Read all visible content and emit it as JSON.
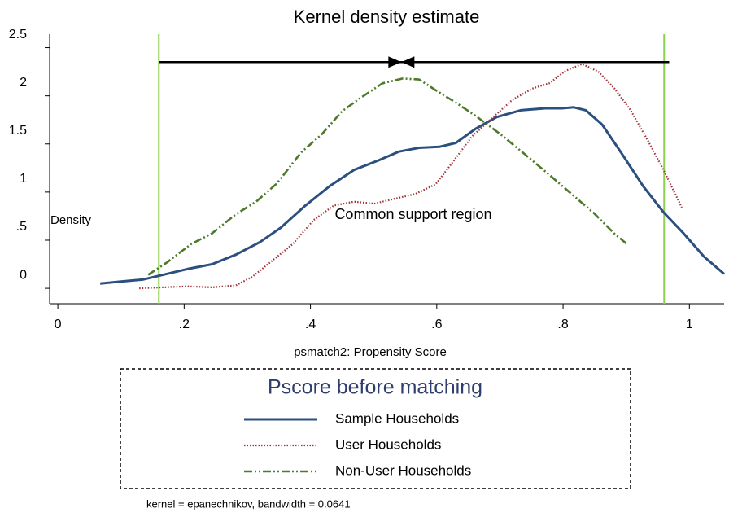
{
  "chart_data": {
    "type": "line",
    "title": "Kernel density estimate",
    "xlabel": "psmatch2: Propensity Score",
    "ylabel": "Density",
    "xlim": [
      -0.013,
      1.055
    ],
    "ylim": [
      -0.16,
      2.64
    ],
    "xticks": [
      0,
      {
        "value": 0.2,
        "label": ".2"
      },
      {
        "value": 0.4,
        "label": ".4"
      },
      {
        "value": 0.6,
        "label": ".6"
      },
      {
        "value": 0.8,
        "label": ".8"
      },
      1
    ],
    "yticks": [
      0,
      {
        "value": 0.5,
        "label": ".5"
      },
      1,
      1.5,
      2,
      2.5
    ],
    "vlines": [
      0.16,
      0.96
    ],
    "vline_color": "#8fd14f",
    "arrow": {
      "y": 2.35,
      "x": [
        0.16,
        0.544,
        0.968
      ]
    },
    "annotation": "Common support region",
    "legend_title": "Pscore before matching",
    "note": "kernel = epanechnikov, bandwidth = 0.0641",
    "series": [
      {
        "name": "Sample Households",
        "color": "#2b4f7e",
        "dash": "solid",
        "x": [
          0.067,
          0.1,
          0.134,
          0.16,
          0.205,
          0.244,
          0.282,
          0.32,
          0.353,
          0.392,
          0.43,
          0.469,
          0.508,
          0.54,
          0.572,
          0.604,
          0.63,
          0.662,
          0.695,
          0.733,
          0.772,
          0.798,
          0.817,
          0.836,
          0.862,
          0.894,
          0.927,
          0.959,
          0.991,
          1.023,
          1.055
        ],
        "values": [
          0.05,
          0.07,
          0.09,
          0.13,
          0.2,
          0.25,
          0.35,
          0.48,
          0.63,
          0.86,
          1.06,
          1.23,
          1.33,
          1.42,
          1.46,
          1.47,
          1.51,
          1.66,
          1.78,
          1.85,
          1.87,
          1.87,
          1.88,
          1.85,
          1.7,
          1.39,
          1.06,
          0.79,
          0.57,
          0.33,
          0.15
        ]
      },
      {
        "name": "User Households",
        "color": "#a0333a",
        "dash": "dotted",
        "x": [
          0.129,
          0.166,
          0.205,
          0.244,
          0.282,
          0.308,
          0.34,
          0.372,
          0.405,
          0.437,
          0.469,
          0.501,
          0.527,
          0.566,
          0.598,
          0.624,
          0.656,
          0.688,
          0.72,
          0.753,
          0.778,
          0.804,
          0.83,
          0.856,
          0.881,
          0.907,
          0.933,
          0.959,
          0.988
        ],
        "values": [
          0,
          0.01,
          0.02,
          0.01,
          0.03,
          0.12,
          0.29,
          0.46,
          0.71,
          0.86,
          0.9,
          0.88,
          0.92,
          0.98,
          1.08,
          1.3,
          1.58,
          1.77,
          1.96,
          2.08,
          2.13,
          2.26,
          2.33,
          2.25,
          2.08,
          1.85,
          1.55,
          1.23,
          0.84
        ]
      },
      {
        "name": "Non-User Households",
        "color": "#4d7a2c",
        "dash": "dashdot",
        "x": [
          0.143,
          0.173,
          0.211,
          0.244,
          0.282,
          0.314,
          0.347,
          0.385,
          0.418,
          0.45,
          0.482,
          0.514,
          0.546,
          0.572,
          0.598,
          0.63,
          0.662,
          0.701,
          0.74,
          0.778,
          0.817,
          0.849,
          0.881,
          0.903
        ],
        "values": [
          0.14,
          0.27,
          0.46,
          0.57,
          0.77,
          0.9,
          1.09,
          1.41,
          1.6,
          1.84,
          1.99,
          2.13,
          2.18,
          2.17,
          2.06,
          1.93,
          1.79,
          1.6,
          1.39,
          1.18,
          0.96,
          0.78,
          0.57,
          0.45
        ]
      }
    ]
  }
}
